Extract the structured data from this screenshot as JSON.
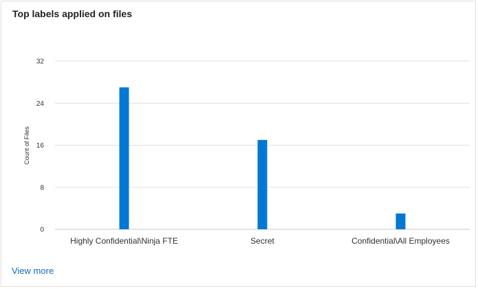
{
  "card": {
    "title": "Top labels applied on files",
    "view_more_label": "View more"
  },
  "chart_data": {
    "type": "bar",
    "title": "Top labels applied on files",
    "xlabel": "",
    "ylabel": "Count of Files",
    "ylim": [
      0,
      32
    ],
    "yticks": [
      0,
      8,
      16,
      24,
      32
    ],
    "grid": true,
    "legend": "none",
    "categories": [
      "Highly Confidential\\Ninja FTE",
      "Secret",
      "Confidential\\All Employees"
    ],
    "values": [
      27,
      17,
      3
    ],
    "bar_color": "#0078d4",
    "grid_color": "#e1dfdd",
    "axis_color": "#c8c6c4"
  }
}
